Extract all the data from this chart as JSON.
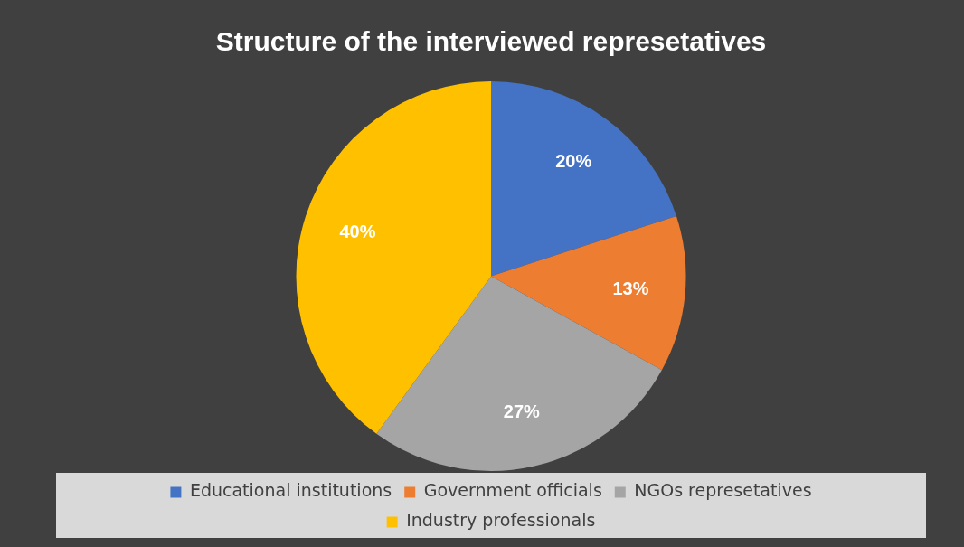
{
  "chart_data": {
    "type": "pie",
    "title": "Structure of the interviewed represetatives",
    "categories": [
      "Educational institutions",
      "Government officials",
      "NGOs represetatives",
      "Industry professionals"
    ],
    "values": [
      20,
      13,
      27,
      40
    ],
    "colors": [
      "#4472c4",
      "#ed7d31",
      "#a5a5a5",
      "#ffc000"
    ],
    "value_labels": [
      "20%",
      "13%",
      "27%",
      "40%"
    ],
    "legend": "bottom"
  }
}
